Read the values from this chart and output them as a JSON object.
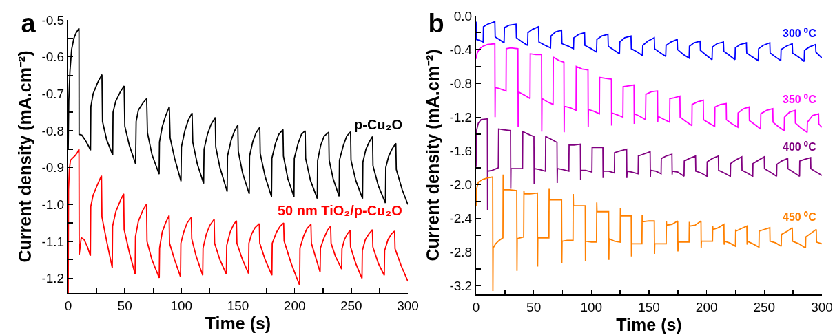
{
  "chart_data": [
    {
      "type": "line",
      "title": "a",
      "xlabel": "Time (s)",
      "ylabel": "Current density (mA.cm⁻²)",
      "xlim": [
        0,
        300
      ],
      "ylim": [
        -1.24,
        -0.5
      ],
      "xticks": [
        0,
        {
          "value": 25,
          "label": null
        },
        50,
        {
          "value": 75,
          "label": null
        },
        100,
        {
          "value": 125,
          "label": null
        },
        150,
        {
          "value": 175,
          "label": null
        },
        200,
        {
          "value": 225,
          "label": null
        },
        250,
        {
          "value": 275,
          "label": null
        },
        300
      ],
      "yticks": [
        -0.5,
        {
          "value": -0.55,
          "label": null
        },
        -0.6,
        {
          "value": -0.65,
          "label": null
        },
        -0.7,
        {
          "value": -0.75,
          "label": null
        },
        -0.8,
        {
          "value": -0.85,
          "label": null
        },
        -0.9,
        {
          "value": -0.95,
          "label": null
        },
        {
          "value": -1,
          "label": "-1.0"
        },
        {
          "value": -1.05,
          "label": null
        },
        -1.1,
        {
          "value": -1.15,
          "label": null
        },
        -1.2
      ],
      "series": [
        {
          "name": "p-Cu₂O",
          "color": "#000000",
          "x": [
            0,
            0.5,
            1.5,
            3,
            5,
            7,
            9.5,
            9.6,
            12,
            15,
            18,
            19.7,
            20,
            22,
            26,
            29.8,
            30.3,
            34,
            39.3,
            39.6,
            42,
            46,
            49.4,
            50,
            54,
            59.5,
            60,
            62,
            66,
            69.3,
            70,
            74,
            80.3,
            80.6,
            83,
            86,
            89.3,
            90,
            94,
            99.6,
            100,
            103,
            106,
            109.4,
            110,
            114,
            119.6,
            120,
            123,
            126,
            129.9,
            130.3,
            134,
            140.4,
            140.7,
            144,
            147,
            149.8,
            150.2,
            154,
            159.9,
            160.2,
            163,
            166,
            169.2,
            169.6,
            174,
            179.6,
            179.9,
            183,
            186,
            189.7,
            190.1,
            194,
            199.4,
            199.7,
            203,
            206,
            209.3,
            209.7,
            214,
            220,
            220.3,
            223,
            226,
            230.1,
            230.5,
            234,
            239.3,
            239.6,
            243,
            246,
            249.4,
            249.8,
            254,
            260,
            260.3,
            263,
            266,
            268.8,
            269.2,
            274,
            280.2,
            280.5,
            283,
            286,
            289.4,
            289.8,
            295,
            300
          ],
          "values": [
            -0.85,
            -0.72,
            -0.64,
            -0.58,
            -0.55,
            -0.535,
            -0.523,
            -0.81,
            -0.812,
            -0.825,
            -0.842,
            -0.853,
            -0.735,
            -0.7,
            -0.67,
            -0.648,
            -0.775,
            -0.825,
            -0.866,
            -0.75,
            -0.72,
            -0.695,
            -0.679,
            -0.788,
            -0.84,
            -0.89,
            -0.775,
            -0.744,
            -0.725,
            -0.713,
            -0.806,
            -0.865,
            -0.918,
            -0.831,
            -0.79,
            -0.76,
            -0.735,
            -0.819,
            -0.875,
            -0.937,
            -0.844,
            -0.8,
            -0.772,
            -0.752,
            -0.831,
            -0.89,
            -0.943,
            -0.85,
            -0.81,
            -0.784,
            -0.764,
            -0.844,
            -0.9,
            -0.965,
            -0.869,
            -0.825,
            -0.8,
            -0.785,
            -0.856,
            -0.915,
            -0.971,
            -0.869,
            -0.83,
            -0.805,
            -0.791,
            -0.862,
            -0.925,
            -0.979,
            -0.875,
            -0.835,
            -0.81,
            -0.797,
            -0.869,
            -0.93,
            -0.979,
            -0.875,
            -0.835,
            -0.81,
            -0.8,
            -0.875,
            -0.935,
            -0.984,
            -0.881,
            -0.84,
            -0.815,
            -0.804,
            -0.88,
            -0.93,
            -0.978,
            -0.88,
            -0.84,
            -0.815,
            -0.803,
            -0.88,
            -0.935,
            -0.984,
            -0.885,
            -0.85,
            -0.83,
            -0.816,
            -0.895,
            -0.95,
            -0.996,
            -0.9,
            -0.87,
            -0.85,
            -0.834,
            -0.905,
            -0.96,
            -1.0
          ]
        },
        {
          "name": "50 nm TiO₂/p-Cu₂O",
          "color": "#ff0000",
          "x": [
            0,
            0.3,
            1,
            2,
            4,
            6,
            8,
            9.5,
            9.7,
            11.5,
            14,
            17,
            19.6,
            19.9,
            22,
            26,
            29.4,
            29.8,
            34,
            38.9,
            39.2,
            42,
            46,
            49,
            49.4,
            54,
            59.1,
            59.4,
            62,
            66,
            69.2,
            69.6,
            74,
            80.4,
            80.7,
            83,
            86,
            89.1,
            89.5,
            94,
            99.2,
            99.5,
            102,
            105,
            108.7,
            109.1,
            113,
            118.8,
            119.1,
            122,
            125,
            128.9,
            129.3,
            134,
            139.7,
            140,
            143,
            146,
            148.6,
            149,
            154,
            159.3,
            159.6,
            162,
            165,
            168.8,
            169.2,
            174,
            179.9,
            180.2,
            184,
            187,
            190.3,
            190.7,
            197,
            204.4,
            204.7,
            208,
            211,
            214.4,
            214.8,
            222.5,
            222.8,
            226,
            229,
            231.8,
            232.2,
            236,
            241.5,
            241.8,
            244,
            246.5,
            249,
            249.4,
            254,
            259.5,
            259.8,
            262.5,
            265.5,
            268.7,
            269.1,
            274,
            279.2,
            279.5,
            282.5,
            285.5,
            288.3,
            288.7,
            294,
            300
          ],
          "values": [
            -1.24,
            -0.96,
            -0.905,
            -0.88,
            -0.874,
            -0.868,
            -0.86,
            -0.85,
            -1.136,
            -1.09,
            -1.095,
            -1.115,
            -1.139,
            -1.006,
            -0.975,
            -0.945,
            -0.922,
            -1.034,
            -1.1,
            -1.171,
            -1.059,
            -1.02,
            -0.99,
            -0.971,
            -1.068,
            -1.13,
            -1.189,
            -1.087,
            -1.045,
            -1.015,
            -0.999,
            -1.1,
            -1.15,
            -1.199,
            -1.118,
            -1.075,
            -1.05,
            -1.03,
            -1.105,
            -1.15,
            -1.196,
            -1.105,
            -1.075,
            -1.05,
            -1.035,
            -1.093,
            -1.14,
            -1.192,
            -1.118,
            -1.08,
            -1.057,
            -1.04,
            -1.105,
            -1.15,
            -1.189,
            -1.111,
            -1.075,
            -1.055,
            -1.044,
            -1.105,
            -1.15,
            -1.187,
            -1.105,
            -1.08,
            -1.063,
            -1.052,
            -1.105,
            -1.15,
            -1.192,
            -1.105,
            -1.075,
            -1.06,
            -1.05,
            -1.099,
            -1.16,
            -1.219,
            -1.118,
            -1.085,
            -1.065,
            -1.054,
            -1.105,
            -1.183,
            -1.118,
            -1.09,
            -1.07,
            -1.059,
            -1.105,
            -1.14,
            -1.175,
            -1.12,
            -1.095,
            -1.08,
            -1.07,
            -1.115,
            -1.16,
            -1.2,
            -1.125,
            -1.095,
            -1.08,
            -1.068,
            -1.115,
            -1.16,
            -1.192,
            -1.125,
            -1.095,
            -1.08,
            -1.072,
            -1.12,
            -1.165,
            -1.208
          ]
        }
      ]
    },
    {
      "type": "line",
      "title": "b",
      "xlabel": "Time (s)",
      "ylabel": "Current density (mA.cm⁻²)",
      "xlim": [
        0,
        300
      ],
      "ylim": [
        -3.3,
        0
      ],
      "xticks": [
        0,
        {
          "value": 25,
          "label": null
        },
        50,
        {
          "value": 75,
          "label": null
        },
        100,
        {
          "value": 125,
          "label": null
        },
        150,
        {
          "value": 175,
          "label": null
        },
        200,
        {
          "value": 225,
          "label": null
        },
        250,
        {
          "value": 275,
          "label": null
        },
        300
      ],
      "yticks": [
        {
          "value": 0,
          "label": "0.0"
        },
        {
          "value": -0.2,
          "label": null
        },
        -0.4,
        {
          "value": -0.6,
          "label": null
        },
        -0.8,
        {
          "value": -1,
          "label": null
        },
        -1.2,
        {
          "value": -1.4,
          "label": null
        },
        -1.6,
        {
          "value": -1.8,
          "label": null
        },
        {
          "value": -2,
          "label": "-2.0"
        },
        {
          "value": -2.2,
          "label": null
        },
        -2.4,
        {
          "value": -2.6,
          "label": null
        },
        -2.8,
        {
          "value": -3,
          "label": null
        },
        -3.2
      ],
      "series": [
        {
          "name": "300 ⁰C",
          "color": "#0000ff",
          "x": [
            0,
            0.3,
            3,
            6.2,
            6.4,
            10,
            16.3,
            16.6,
            20,
            24.3,
            24.6,
            29,
            34.7,
            35,
            40,
            44.7,
            45,
            49,
            54.2,
            54.5,
            60,
            64.6,
            64.9,
            69,
            74.2,
            74.5,
            80,
            84.5,
            84.8,
            89,
            94.1,
            94.4,
            100,
            104.5,
            104.8,
            109,
            114.4,
            114.7,
            120,
            124.4,
            124.7,
            129,
            134.4,
            134.7,
            140,
            144.3,
            144.6,
            149,
            154.6,
            154.9,
            160,
            164.5,
            164.8,
            169,
            174.5,
            174.8,
            180,
            184.8,
            185.1,
            189,
            194.3,
            194.6,
            200,
            204.7,
            205,
            209,
            214.6,
            214.9,
            220,
            224.6,
            224.9,
            229,
            234.5,
            234.8,
            240,
            244.8,
            245.1,
            249,
            254.8,
            255.1,
            260,
            264.3,
            264.6,
            269,
            274.3,
            274.6,
            280,
            284.6,
            284.9,
            289,
            294.5,
            294.8,
            300
          ],
          "values": [
            -0.07,
            -0.28,
            -0.29,
            -0.31,
            -0.13,
            -0.1,
            -0.07,
            -0.25,
            -0.28,
            -0.32,
            -0.14,
            -0.11,
            -0.1,
            -0.26,
            -0.31,
            -0.35,
            -0.2,
            -0.16,
            -0.13,
            -0.31,
            -0.35,
            -0.38,
            -0.24,
            -0.19,
            -0.17,
            -0.33,
            -0.36,
            -0.39,
            -0.26,
            -0.22,
            -0.2,
            -0.35,
            -0.39,
            -0.43,
            -0.28,
            -0.24,
            -0.22,
            -0.36,
            -0.41,
            -0.45,
            -0.31,
            -0.26,
            -0.24,
            -0.39,
            -0.43,
            -0.47,
            -0.35,
            -0.3,
            -0.26,
            -0.39,
            -0.44,
            -0.48,
            -0.35,
            -0.31,
            -0.28,
            -0.4,
            -0.46,
            -0.5,
            -0.36,
            -0.32,
            -0.3,
            -0.41,
            -0.47,
            -0.52,
            -0.37,
            -0.33,
            -0.31,
            -0.42,
            -0.47,
            -0.52,
            -0.38,
            -0.34,
            -0.32,
            -0.44,
            -0.49,
            -0.53,
            -0.39,
            -0.35,
            -0.32,
            -0.44,
            -0.49,
            -0.53,
            -0.4,
            -0.36,
            -0.33,
            -0.44,
            -0.49,
            -0.54,
            -0.41,
            -0.37,
            -0.34,
            -0.43,
            -0.5
          ]
        },
        {
          "name": "350 ⁰C",
          "color": "#ff00ff",
          "x": [
            0,
            1,
            3,
            6,
            10,
            16.3,
            16.5,
            16.7,
            20,
            26,
            26.2,
            30,
            36.3,
            36.5,
            36.7,
            42,
            46.8,
            47,
            52,
            56.8,
            57,
            57.2,
            62,
            66.8,
            67,
            72,
            76.2,
            76.4,
            76.6,
            82,
            86.7,
            86.9,
            92,
            97.1,
            97.3,
            97.5,
            102,
            107,
            107.2,
            112,
            117.4,
            117.6,
            117.8,
            122,
            127.4,
            127.6,
            132,
            137,
            137.2,
            137.4,
            142,
            147,
            147.3,
            152,
            157.4,
            157.6,
            157.8,
            162,
            167.9,
            168.1,
            172,
            176.8,
            177,
            182,
            187.2,
            187.4,
            192,
            197.1,
            197.3,
            202,
            207,
            207.2,
            212,
            217,
            217.2,
            222,
            227.1,
            227.3,
            232,
            236.9,
            237.1,
            242,
            246.8,
            247,
            252,
            257.4,
            257.6,
            262,
            267.3,
            267.5,
            272,
            276.8,
            277,
            282,
            287.2,
            287.4,
            292,
            297.1,
            297.3,
            300
          ],
          "values": [
            -0.51,
            -0.44,
            -0.39,
            -0.36,
            -0.34,
            -0.33,
            -1.2,
            -0.85,
            -0.86,
            -0.89,
            -0.39,
            -0.38,
            -0.39,
            -1.32,
            -0.9,
            -0.94,
            -0.98,
            -0.45,
            -0.46,
            -0.46,
            -1.37,
            -0.98,
            -1.02,
            -1.05,
            -0.49,
            -0.53,
            -0.55,
            -1.38,
            -1.07,
            -1.09,
            -1.12,
            -0.6,
            -0.63,
            -0.64,
            -1.32,
            -1.11,
            -1.13,
            -1.16,
            -0.73,
            -0.74,
            -0.75,
            -1.3,
            -1.15,
            -1.17,
            -1.2,
            -0.84,
            -0.83,
            -0.82,
            -1.28,
            -1.16,
            -1.19,
            -1.23,
            -0.93,
            -0.9,
            -0.89,
            -1.26,
            -1.19,
            -1.22,
            -1.26,
            -0.98,
            -0.97,
            -0.95,
            -1.2,
            -1.25,
            -1.3,
            -1.05,
            -1.02,
            -1.0,
            -1.23,
            -1.27,
            -1.31,
            -1.08,
            -1.05,
            -1.04,
            -1.23,
            -1.28,
            -1.32,
            -1.15,
            -1.1,
            -1.08,
            -1.24,
            -1.29,
            -1.34,
            -1.16,
            -1.12,
            -1.1,
            -1.26,
            -1.31,
            -1.36,
            -1.2,
            -1.14,
            -1.12,
            -1.27,
            -1.33,
            -1.38,
            -1.26,
            -1.18,
            -1.16,
            -1.28,
            -1.32
          ]
        },
        {
          "name": "400 ⁰C",
          "color": "#800080",
          "x": [
            0,
            0.4,
            2,
            4.4,
            9.8,
            10,
            10.2,
            14,
            19.3,
            19.6,
            24,
            29.9,
            30.1,
            30.3,
            35,
            40.3,
            40.5,
            45,
            50.2,
            50.4,
            50.6,
            55,
            60.2,
            60.4,
            65,
            70.2,
            70.4,
            70.6,
            75,
            80.5,
            80.7,
            85,
            90.5,
            90.7,
            90.9,
            95,
            100.5,
            100.7,
            105,
            110,
            110.2,
            110.4,
            115,
            120,
            120.2,
            125,
            130.6,
            130.8,
            131,
            135,
            140.6,
            140.8,
            145,
            151,
            151.2,
            151.4,
            156,
            160.5,
            160.7,
            165,
            169.9,
            170.1,
            170.3,
            175,
            180.4,
            180.6,
            185,
            190.4,
            190.6,
            195,
            200.3,
            200.5,
            205,
            210.2,
            210.4,
            215,
            220.6,
            220.8,
            225,
            230.5,
            230.7,
            235,
            240,
            240.2,
            245,
            250,
            250.2,
            255,
            260.7,
            260.9,
            265,
            270.3,
            270.5,
            275,
            280.6,
            280.8,
            285,
            290.2,
            290.4,
            295,
            300
          ],
          "values": [
            -1.79,
            -1.36,
            -1.27,
            -1.23,
            -1.22,
            -2.3,
            -1.84,
            -1.83,
            -1.8,
            -1.34,
            -1.35,
            -1.36,
            -2.05,
            -1.81,
            -1.81,
            -1.81,
            -1.37,
            -1.4,
            -1.43,
            -1.99,
            -1.81,
            -1.82,
            -1.84,
            -1.43,
            -1.46,
            -1.5,
            -1.98,
            -1.81,
            -1.82,
            -1.84,
            -1.53,
            -1.53,
            -1.52,
            -1.94,
            -1.83,
            -1.83,
            -1.85,
            -1.56,
            -1.56,
            -1.56,
            -1.92,
            -1.84,
            -1.84,
            -1.86,
            -1.62,
            -1.6,
            -1.58,
            -1.92,
            -1.84,
            -1.85,
            -1.87,
            -1.66,
            -1.64,
            -1.61,
            -1.91,
            -1.83,
            -1.84,
            -1.87,
            -1.69,
            -1.66,
            -1.64,
            -1.88,
            -1.84,
            -1.85,
            -1.9,
            -1.72,
            -1.69,
            -1.66,
            -1.84,
            -1.86,
            -1.9,
            -1.73,
            -1.69,
            -1.66,
            -1.83,
            -1.86,
            -1.9,
            -1.75,
            -1.71,
            -1.67,
            -1.83,
            -1.86,
            -1.9,
            -1.75,
            -1.71,
            -1.67,
            -1.81,
            -1.85,
            -1.9,
            -1.76,
            -1.72,
            -1.69,
            -1.81,
            -1.85,
            -1.9,
            -1.72,
            -1.7,
            -1.68,
            -1.81,
            -1.85,
            -1.89
          ]
        },
        {
          "name": "450 ⁰C",
          "color": "#ff8000",
          "x": [
            0,
            0.5,
            2,
            5.4,
            10,
            14.4,
            14.6,
            14.8,
            17,
            20,
            23.3,
            23.5,
            23.7,
            29,
            35.3,
            35.5,
            35.7,
            38,
            41.3,
            41.5,
            41.7,
            47,
            53.2,
            53.4,
            53.6,
            58,
            63.2,
            63.4,
            63.6,
            68,
            74.2,
            74.4,
            74.6,
            79,
            84.1,
            84.3,
            84.5,
            89,
            94.7,
            94.9,
            95.1,
            100,
            104.5,
            104.7,
            104.9,
            110,
            115,
            115.2,
            115.4,
            120,
            125,
            125.2,
            125.4,
            130,
            134.6,
            134.8,
            135,
            140,
            143.9,
            144.1,
            144.3,
            150,
            154.6,
            154.8,
            155,
            160,
            164.9,
            165.1,
            165.3,
            170,
            174.9,
            175.1,
            175.3,
            180,
            184.8,
            185,
            185.2,
            190,
            195.1,
            195.3,
            195.5,
            200,
            205.1,
            205.3,
            205.5,
            210,
            215,
            215.2,
            215.4,
            220,
            225,
            225.2,
            225.4,
            230,
            234.9,
            235.1,
            235.3,
            240,
            245.4,
            245.6,
            250,
            254.8,
            255,
            260,
            264.7,
            264.9,
            270,
            274.3,
            274.5,
            280,
            285.8,
            286,
            290,
            295.1,
            295.3,
            300
          ],
          "values": [
            -2.25,
            -2.05,
            -1.97,
            -1.94,
            -1.92,
            -1.91,
            -3.26,
            -2.75,
            -2.7,
            -2.66,
            -2.63,
            -1.88,
            -2.06,
            -2.06,
            -2.07,
            -3.02,
            -2.64,
            -2.63,
            -2.62,
            -2.07,
            -2.11,
            -2.11,
            -2.1,
            -2.97,
            -2.63,
            -2.63,
            -2.63,
            -2.05,
            -2.18,
            -2.18,
            -2.18,
            -2.93,
            -2.67,
            -2.66,
            -2.66,
            -2.11,
            -2.25,
            -2.25,
            -2.25,
            -2.9,
            -2.67,
            -2.68,
            -2.68,
            -2.21,
            -2.32,
            -2.32,
            -2.32,
            -2.89,
            -2.64,
            -2.67,
            -2.68,
            -2.28,
            -2.37,
            -2.37,
            -2.37,
            -2.85,
            -2.7,
            -2.7,
            -2.7,
            -2.36,
            -2.44,
            -2.43,
            -2.43,
            -2.82,
            -2.7,
            -2.7,
            -2.7,
            -2.43,
            -2.48,
            -2.47,
            -2.43,
            -2.79,
            -2.68,
            -2.68,
            -2.68,
            -2.44,
            -2.49,
            -2.48,
            -2.43,
            -2.75,
            -2.67,
            -2.67,
            -2.67,
            -2.49,
            -2.53,
            -2.51,
            -2.47,
            -2.71,
            -2.67,
            -2.69,
            -2.73,
            -2.53,
            -2.55,
            -2.52,
            -2.49,
            -2.71,
            -2.67,
            -2.7,
            -2.74,
            -2.55,
            -2.53,
            -2.51,
            -2.67,
            -2.69,
            -2.73,
            -2.59,
            -2.55,
            -2.51,
            -2.67,
            -2.7,
            -2.75,
            -2.62,
            -2.58,
            -2.53,
            -2.68,
            -2.7
          ]
        }
      ]
    }
  ]
}
